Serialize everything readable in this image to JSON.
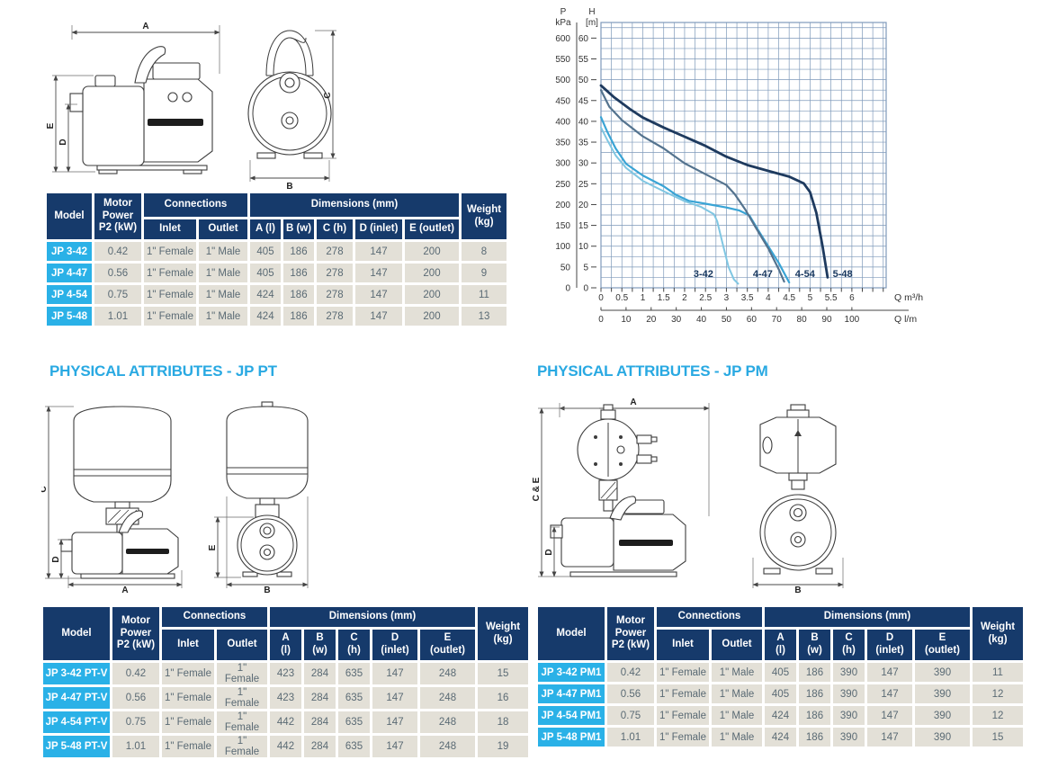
{
  "headings": {
    "pt": "PHYSICAL ATTRIBUTES - JP PT",
    "pm": "PHYSICAL ATTRIBUTES - JP PM"
  },
  "colors": {
    "heading_blue": "#29a9e2",
    "table_header_navy": "#163a6b",
    "model_cell_cyan": "#2ab1e7",
    "data_cell_beige": "#e3e0d7",
    "data_text": "#5a6a74"
  },
  "drawings": {
    "jp_side": {
      "dim_top": "A",
      "dim_left_outer": "E",
      "dim_left_inner": "D"
    },
    "jp_front": {
      "dim_right": "C",
      "dim_bottom": "B"
    },
    "pt_side": {
      "dim_left_outer": "C",
      "dim_left_inner": "D",
      "dim_bottom": "A"
    },
    "pt_front": {
      "dim_left": "E",
      "dim_bottom": "B"
    },
    "pm_side": {
      "dim_top": "A",
      "dim_left_outer": "C & E",
      "dim_left_inner": "D"
    },
    "pm_front": {
      "dim_bottom": "B"
    }
  },
  "tables": {
    "jp": {
      "header": {
        "model": "Model",
        "power_lines": [
          "Motor",
          "Power",
          "P2 (kW)"
        ],
        "connections": "Connections",
        "inlet": "Inlet",
        "outlet": "Outlet",
        "dimensions": "Dimensions (mm)",
        "dim_lines": [
          [
            "A (l)"
          ],
          [
            "B (w)"
          ],
          [
            "C (h)"
          ],
          [
            "D (inlet)"
          ],
          [
            "E (outlet)"
          ]
        ],
        "weight_lines": [
          "Weight",
          "(kg)"
        ]
      },
      "rows": [
        [
          "JP 3-42",
          "0.42",
          "1\" Female",
          "1\" Male",
          "405",
          "186",
          "278",
          "147",
          "200",
          "8"
        ],
        [
          "JP 4-47",
          "0.56",
          "1\" Female",
          "1\" Male",
          "405",
          "186",
          "278",
          "147",
          "200",
          "9"
        ],
        [
          "JP 4-54",
          "0.75",
          "1\" Female",
          "1\" Male",
          "424",
          "186",
          "278",
          "147",
          "200",
          "11"
        ],
        [
          "JP 5-48",
          "1.01",
          "1\" Female",
          "1\" Male",
          "424",
          "186",
          "278",
          "147",
          "200",
          "13"
        ]
      ]
    },
    "pt": {
      "header": {
        "model": "Model",
        "power_lines": [
          "Motor",
          "Power",
          "P2 (kW)"
        ],
        "connections": "Connections",
        "inlet": "Inlet",
        "outlet": "Outlet",
        "dimensions": "Dimensions (mm)",
        "dim_lines": [
          [
            "A",
            "(l)"
          ],
          [
            "B",
            "(w)"
          ],
          [
            "C",
            "(h)"
          ],
          [
            "D",
            "(inlet)"
          ],
          [
            "E",
            "(outlet)"
          ]
        ],
        "weight_lines": [
          "Weight",
          "(kg)"
        ]
      },
      "rows": [
        [
          "JP 3-42 PT-V",
          "0.42",
          "1\" Female",
          "1\" Female",
          "423",
          "284",
          "635",
          "147",
          "248",
          "15"
        ],
        [
          "JP 4-47 PT-V",
          "0.56",
          "1\" Female",
          "1\" Female",
          "423",
          "284",
          "635",
          "147",
          "248",
          "16"
        ],
        [
          "JP 4-54 PT-V",
          "0.75",
          "1\" Female",
          "1\" Female",
          "442",
          "284",
          "635",
          "147",
          "248",
          "18"
        ],
        [
          "JP 5-48 PT-V",
          "1.01",
          "1\" Female",
          "1\" Female",
          "442",
          "284",
          "635",
          "147",
          "248",
          "19"
        ]
      ]
    },
    "pm": {
      "header": {
        "model": "Model",
        "power_lines": [
          "Motor",
          "Power",
          "P2 (kW)"
        ],
        "connections": "Connections",
        "inlet": "Inlet",
        "outlet": "Outlet",
        "dimensions": "Dimensions (mm)",
        "dim_lines": [
          [
            "A",
            "(l)"
          ],
          [
            "B",
            "(w)"
          ],
          [
            "C",
            "(h)"
          ],
          [
            "D",
            "(inlet)"
          ],
          [
            "E",
            "(outlet)"
          ]
        ],
        "weight_lines": [
          "Weight",
          "(kg)"
        ]
      },
      "rows": [
        [
          "JP 3-42 PM1",
          "0.42",
          "1\" Female",
          "1\" Male",
          "405",
          "186",
          "390",
          "147",
          "390",
          "11"
        ],
        [
          "JP 4-47 PM1",
          "0.56",
          "1\" Female",
          "1\" Male",
          "405",
          "186",
          "390",
          "147",
          "390",
          "12"
        ],
        [
          "JP 4-54 PM1",
          "0.75",
          "1\" Female",
          "1\" Male",
          "424",
          "186",
          "390",
          "147",
          "390",
          "12"
        ],
        [
          "JP 5-48 PM1",
          "1.01",
          "1\" Female",
          "1\" Male",
          "424",
          "186",
          "390",
          "147",
          "390",
          "15"
        ]
      ]
    }
  },
  "chart_data": {
    "type": "line",
    "title": "",
    "y_axis_primary": {
      "label_lines": [
        "P",
        "kPa"
      ],
      "ticks": [
        600,
        550,
        500,
        450,
        400,
        350,
        300,
        250,
        200,
        150,
        100,
        50,
        0
      ]
    },
    "y_axis_secondary": {
      "label_lines": [
        "H",
        "[m]"
      ],
      "ticks": [
        60,
        55,
        50,
        45,
        40,
        35,
        30,
        25,
        20,
        15,
        10,
        5,
        0
      ]
    },
    "x_axis_primary": {
      "label": "Q m³/h",
      "ticks": [
        0,
        0.5,
        1,
        1.5,
        2,
        2.5,
        3,
        3.5,
        4,
        4.5,
        5,
        5.5,
        6
      ]
    },
    "x_axis_secondary": {
      "label": "Q l/m",
      "ticks": [
        0,
        10,
        20,
        30,
        40,
        50,
        60,
        70,
        80,
        90,
        100
      ]
    },
    "xlim": [
      0,
      6.82
    ],
    "ylim": [
      0,
      63.75
    ],
    "grid": {
      "on": true,
      "x_step": 0.25,
      "y_step": 2.5,
      "color": "#7e99ba"
    },
    "legend_position": "none",
    "series": [
      {
        "name": "3-42",
        "color": "#7fc6e2",
        "width": 2,
        "points": [
          [
            0,
            38.5
          ],
          [
            0.15,
            35.5
          ],
          [
            0.35,
            31.8
          ],
          [
            0.6,
            28.8
          ],
          [
            1,
            25.7
          ],
          [
            1.5,
            23.2
          ],
          [
            2,
            20.8
          ],
          [
            2.4,
            19.4
          ],
          [
            2.7,
            17.7
          ],
          [
            2.78,
            16
          ],
          [
            2.9,
            11
          ],
          [
            3.05,
            5
          ],
          [
            3.18,
            2
          ],
          [
            3.28,
            1
          ]
        ]
      },
      {
        "name": "4-47",
        "color": "#3aa4d5",
        "width": 2.2,
        "points": [
          [
            0,
            41
          ],
          [
            0.15,
            37.5
          ],
          [
            0.35,
            33.5
          ],
          [
            0.6,
            29.8
          ],
          [
            1,
            27
          ],
          [
            1.5,
            24.4
          ],
          [
            1.8,
            22.3
          ],
          [
            2.1,
            20.9
          ],
          [
            2.5,
            20.2
          ],
          [
            3,
            19.3
          ],
          [
            3.3,
            18.6
          ],
          [
            3.55,
            17.4
          ],
          [
            3.75,
            14
          ],
          [
            4,
            10
          ],
          [
            4.25,
            6
          ],
          [
            4.5,
            1.3
          ]
        ]
      },
      {
        "name": "4-54",
        "color": "#54738e",
        "width": 2.2,
        "points": [
          [
            0,
            47.5
          ],
          [
            0.2,
            43.5
          ],
          [
            0.5,
            40.3
          ],
          [
            1,
            36.4
          ],
          [
            1.5,
            33.5
          ],
          [
            2,
            29.9
          ],
          [
            2.5,
            27.3
          ],
          [
            3,
            24.7
          ],
          [
            3.2,
            22.5
          ],
          [
            3.45,
            18.8
          ],
          [
            3.7,
            14.5
          ],
          [
            4,
            9.5
          ],
          [
            4.25,
            4.5
          ],
          [
            4.38,
            1.5
          ]
        ]
      },
      {
        "name": "5-48",
        "color": "#1e3a5e",
        "width": 2.8,
        "points": [
          [
            0,
            48.6
          ],
          [
            0.3,
            45.9
          ],
          [
            0.7,
            42.9
          ],
          [
            1,
            40.9
          ],
          [
            1.5,
            38.5
          ],
          [
            2,
            36.3
          ],
          [
            2.5,
            34.1
          ],
          [
            3,
            31.5
          ],
          [
            3.5,
            29.5
          ],
          [
            4,
            28.1
          ],
          [
            4.5,
            26.7
          ],
          [
            4.85,
            25.1
          ],
          [
            5,
            23
          ],
          [
            5.15,
            18
          ],
          [
            5.3,
            10
          ],
          [
            5.42,
            2.5
          ]
        ]
      }
    ],
    "curve_labels": [
      {
        "text": "3-42",
        "q": 2.45,
        "h": 2.6
      },
      {
        "text": "4-47",
        "q": 3.87,
        "h": 2.6
      },
      {
        "text": "4-54",
        "q": 4.88,
        "h": 2.6
      },
      {
        "text": "5-48",
        "q": 5.78,
        "h": 2.6
      }
    ]
  }
}
